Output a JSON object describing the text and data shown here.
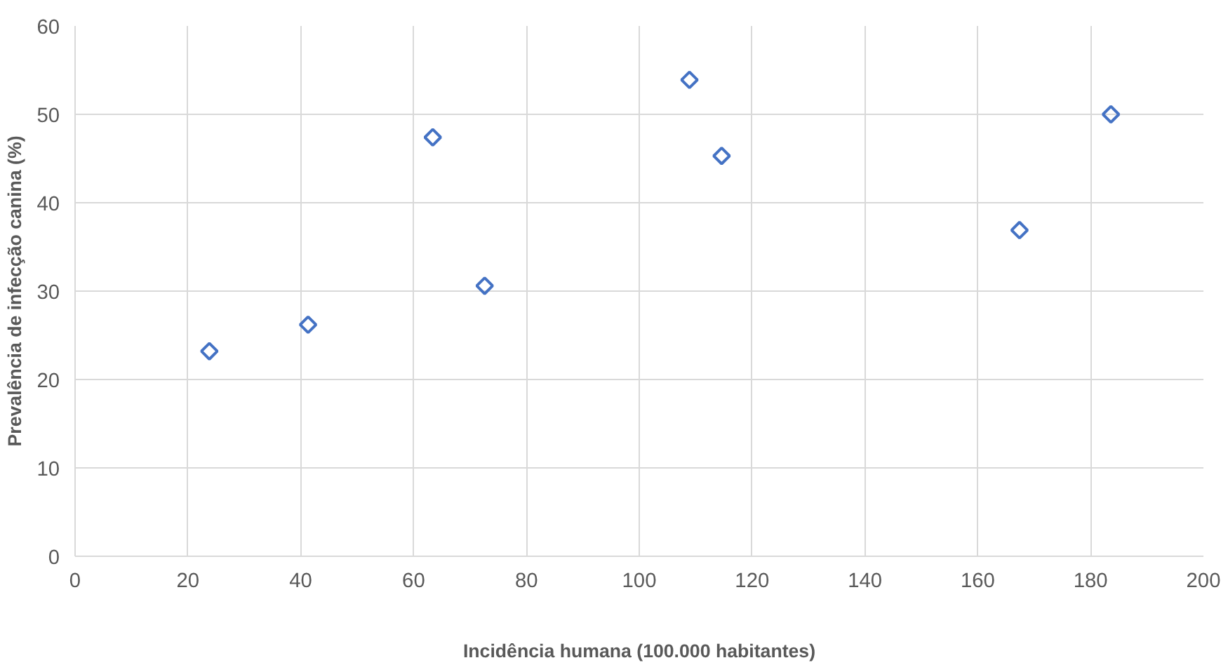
{
  "chart_data": {
    "type": "scatter",
    "xlabel": "Incidência humana (100.000 habitantes)",
    "ylabel": "Prevalência de infecção canina (%)",
    "x": [
      23.8,
      41.3,
      63.4,
      72.6,
      108.9,
      114.6,
      167.4,
      183.6
    ],
    "series": [
      {
        "color": "#4472c4",
        "values": [
          23.2,
          26.2,
          47.4,
          30.6,
          53.9,
          45.3,
          36.9,
          50.0
        ]
      }
    ],
    "xlim": [
      0,
      200
    ],
    "ylim": [
      0,
      60
    ],
    "xticks": [
      0,
      20,
      40,
      60,
      80,
      100,
      120,
      140,
      160,
      180,
      200
    ],
    "yticks": [
      0,
      10,
      20,
      30,
      40,
      50,
      60
    ],
    "grid": true,
    "marker": "diamond"
  }
}
